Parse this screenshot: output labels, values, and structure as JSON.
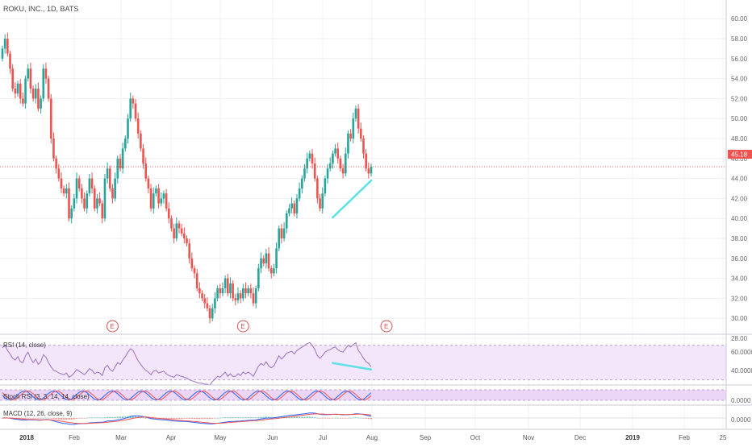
{
  "chart_data": {
    "type": "candlestick",
    "title": "ROKU, INC., 1D, BATS",
    "price_axis": {
      "range": [
        27.5,
        60.5
      ],
      "ticks": [
        "60.00",
        "58.00",
        "56.00",
        "54.00",
        "52.00",
        "50.00",
        "48.00",
        "46.00",
        "44.00",
        "42.00",
        "40.00",
        "38.00",
        "36.00",
        "34.00",
        "32.00",
        "30.00",
        "28.00"
      ]
    },
    "last_price": "45.18",
    "x_labels": [
      "2018",
      "Feb",
      "Mar",
      "Apr",
      "May",
      "Jun",
      "Jul",
      "Aug",
      "Sep",
      "Oct",
      "Nov",
      "Dec",
      "2019",
      "Feb",
      "25"
    ],
    "closes": [
      57,
      58,
      56.5,
      55,
      53,
      52.5,
      53.5,
      52,
      51.5,
      54,
      55,
      53,
      52,
      53,
      51,
      52,
      55,
      54,
      52,
      48,
      46,
      45,
      44,
      43,
      42.5,
      43,
      40,
      41,
      42,
      44,
      43,
      42,
      41,
      42.5,
      44,
      43,
      41,
      42,
      41.5,
      40,
      44,
      45,
      43,
      42,
      44,
      46,
      45,
      47,
      48,
      50,
      52,
      51.5,
      50,
      48.5,
      47,
      45.5,
      44,
      43,
      41,
      42.5,
      43,
      41.5,
      42,
      42.5,
      41,
      40,
      39,
      38,
      39.5,
      39,
      38.5,
      38,
      37.5,
      36,
      35,
      34.5,
      33,
      32.5,
      32,
      31.5,
      31,
      30,
      31,
      32,
      33,
      32.5,
      33,
      34,
      32.5,
      33.5,
      32,
      31.8,
      32.5,
      32,
      33,
      32.5,
      33,
      32.5,
      31.5,
      33,
      35,
      36,
      35.5,
      36.5,
      35,
      34.5,
      35,
      37,
      39,
      38,
      39,
      40.5,
      41,
      41.5,
      40.5,
      42,
      43,
      44,
      45,
      46,
      46.5,
      45.5,
      44,
      42,
      41,
      42.5,
      44,
      45,
      45.5,
      46.5,
      47,
      46,
      45,
      44.5,
      46.5,
      48.5,
      48,
      50,
      51,
      49,
      48,
      46.5,
      45,
      44.5,
      45.18
    ],
    "rsi": {
      "label": "RSI (14, close)",
      "ticks": [
        "60.0000",
        "40.0000"
      ],
      "range": [
        25,
        80
      ],
      "bands": [
        70,
        30
      ],
      "values": [
        67,
        70,
        64,
        60,
        55,
        53,
        57,
        51,
        50,
        58,
        62,
        55,
        50,
        54,
        48,
        51,
        59,
        56,
        50,
        45,
        41,
        40,
        38,
        37,
        36,
        38,
        33,
        35,
        38,
        42,
        40,
        38,
        36,
        39,
        43,
        41,
        37,
        39,
        38,
        35,
        44,
        47,
        42,
        40,
        45,
        50,
        48,
        53,
        57,
        62,
        66,
        64,
        58,
        52,
        48,
        44,
        41,
        39,
        36,
        40,
        41,
        38,
        39,
        40,
        37,
        35,
        34,
        33,
        36,
        35,
        34,
        33,
        32,
        30,
        29,
        28,
        27,
        26,
        26,
        25,
        25,
        24,
        28,
        31,
        34,
        33,
        36,
        39,
        34,
        37,
        34,
        34,
        37,
        35,
        39,
        37,
        39,
        37,
        34,
        40,
        46,
        49,
        47,
        51,
        46,
        44,
        46,
        52,
        58,
        54,
        57,
        61,
        62,
        63,
        60,
        64,
        66,
        68,
        70,
        72,
        73,
        70,
        65,
        58,
        55,
        58,
        62,
        64,
        65,
        67,
        68,
        65,
        63,
        62,
        66,
        70,
        68,
        71,
        73,
        64,
        60,
        55,
        51,
        49,
        45
      ]
    },
    "stoch_rsi": {
      "label": "Stoch RSI (3, 3, 14, 14, close)",
      "ticks": [
        "0.0000"
      ]
    },
    "macd": {
      "label": "MACD (12, 26, close, 9)",
      "ticks": [
        "0.0000"
      ]
    },
    "earnings_markers": [
      "E",
      "E",
      "E"
    ]
  }
}
